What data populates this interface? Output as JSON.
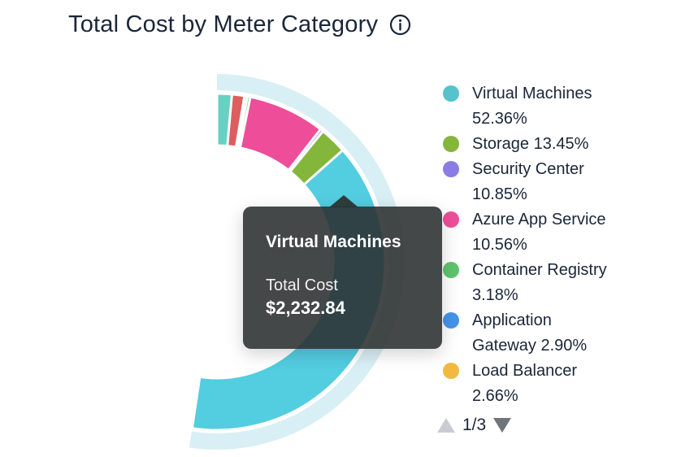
{
  "header": {
    "title": "Total Cost by Meter Category",
    "info_icon": "info-icon"
  },
  "chart_data": {
    "type": "pie",
    "subtype": "donut",
    "title": "Total Cost by Meter Category",
    "value_unit": "%",
    "hovered_segment": "Virtual Machines",
    "highlight_halo_color": "#D8EFF5",
    "segments": [
      {
        "name": "Virtual Machines",
        "percent": 52.36,
        "color": "#53CDE0",
        "highlighted": true
      },
      {
        "name": "Storage",
        "percent": 13.45,
        "color": "#84B63C"
      },
      {
        "name": "Security Center",
        "percent": 10.85,
        "color": "#8B7CE4"
      },
      {
        "name": "Azure App Service",
        "percent": 10.56,
        "color": "#EE4D99"
      },
      {
        "name": "Container Registry",
        "percent": 3.18,
        "color": "#5EC46D"
      },
      {
        "name": "Application Gateway",
        "percent": 2.9,
        "color": "#4494EA"
      },
      {
        "name": "Load Balancer",
        "percent": 2.66,
        "color": "#F2B93E"
      },
      {
        "name": "",
        "percent": 2.62,
        "color": "#DC5E5E",
        "label_visible": false
      },
      {
        "name": "",
        "percent": 1.42,
        "color": "#69D1C1",
        "label_visible": false
      }
    ]
  },
  "tooltip": {
    "title": "Virtual Machines",
    "label": "Total Cost",
    "value": "$2,232.84"
  },
  "legend": {
    "items": [
      {
        "color": "#55C2CC",
        "lines": [
          "Virtual Machines",
          "52.36%"
        ]
      },
      {
        "color": "#84B63C",
        "lines": [
          "Storage 13.45%"
        ]
      },
      {
        "color": "#8B7CE4",
        "lines": [
          "Security Center",
          "10.85%"
        ]
      },
      {
        "color": "#EE4D99",
        "lines": [
          "Azure App Service",
          "10.56%"
        ]
      },
      {
        "color": "#5EC46D",
        "lines": [
          "Container Registry",
          "3.18%"
        ]
      },
      {
        "color": "#4494EA",
        "lines": [
          "Application",
          "Gateway 2.90%"
        ]
      },
      {
        "color": "#F2B93E",
        "lines": [
          "Load Balancer",
          "2.66%"
        ]
      }
    ],
    "pager": {
      "current_page": "1/3",
      "up_icon": "triangle-up-icon",
      "up_color": "#c9cdd2",
      "down_icon": "triangle-down-icon",
      "down_color": "#70757a"
    }
  }
}
